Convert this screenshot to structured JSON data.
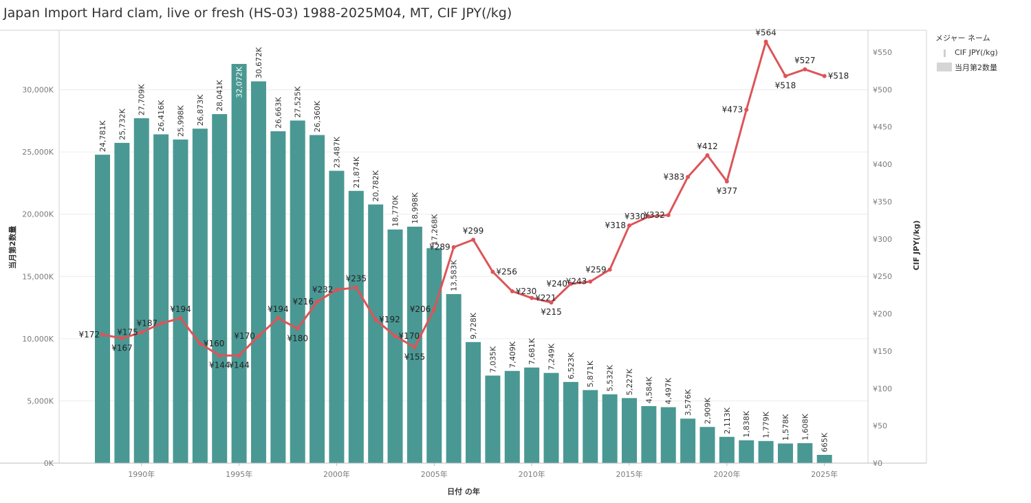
{
  "title": "Japan Import Hard clam, live or fresh (HS-03) 1988-2025M04, MT, CIF JPY(/kg)",
  "legend": {
    "title": "メジャー ネーム",
    "items": [
      {
        "label": "CIF JPY(/kg)",
        "kind": "line"
      },
      {
        "label": "当月第2数量",
        "kind": "bar"
      }
    ]
  },
  "colors": {
    "bar": "#4a9893",
    "line": "#dd5458",
    "grid": "#ececec",
    "axis": "#d0d0d0",
    "tick_text": "#7a7a7a",
    "label_text": "#333333"
  },
  "chart_data": {
    "type": "bar",
    "title": "Japan Import Hard clam, live or fresh (HS-03) 1988-2025M04, MT, CIF JPY(/kg)",
    "xlabel": "日付 の年",
    "ylabel": "当月第2数量",
    "y2label": "CIF JPY(/kg)",
    "ylim": [
      0,
      35000
    ],
    "y2lim": [
      0,
      583
    ],
    "x": [
      1988,
      1989,
      1990,
      1991,
      1992,
      1993,
      1994,
      1995,
      1996,
      1997,
      1998,
      1999,
      2000,
      2001,
      2002,
      2003,
      2004,
      2005,
      2006,
      2007,
      2008,
      2009,
      2010,
      2011,
      2012,
      2013,
      2014,
      2015,
      2016,
      2017,
      2018,
      2019,
      2020,
      2021,
      2022,
      2023,
      2024,
      2025
    ],
    "x_ticks": [
      1990,
      1995,
      2000,
      2005,
      2010,
      2015,
      2020,
      2025
    ],
    "x_tick_labels": [
      "1990年",
      "1995年",
      "2000年",
      "2005年",
      "2010年",
      "2015年",
      "2020年",
      "2025年"
    ],
    "y_ticks": [
      0,
      5000,
      10000,
      15000,
      20000,
      25000,
      30000
    ],
    "y_tick_labels": [
      "0K",
      "5,000K",
      "10,000K",
      "15,000K",
      "20,000K",
      "25,000K",
      "30,000K"
    ],
    "y2_ticks": [
      0,
      50,
      100,
      150,
      200,
      250,
      300,
      350,
      400,
      450,
      500,
      550
    ],
    "y2_tick_labels": [
      "¥0",
      "¥50",
      "¥100",
      "¥150",
      "¥200",
      "¥250",
      "¥300",
      "¥350",
      "¥400",
      "¥450",
      "¥500",
      "¥550"
    ],
    "series": [
      {
        "name": "当月第2数量",
        "type": "bar",
        "axis": "left",
        "values": [
          24781,
          25732,
          27709,
          26416,
          25998,
          26873,
          28041,
          32072,
          30672,
          26663,
          27525,
          26360,
          23487,
          21874,
          20782,
          18770,
          18998,
          17268,
          13583,
          9728,
          7035,
          7409,
          7681,
          7249,
          6523,
          5871,
          5532,
          5227,
          4584,
          4497,
          3576,
          2909,
          2113,
          1838,
          1779,
          1578,
          1608,
          665
        ],
        "labels": [
          "24,781K",
          "25,732K",
          "27,709K",
          "26,416K",
          "25,998K",
          "26,873K",
          "28,041K",
          "32,072K",
          "30,672K",
          "26,663K",
          "27,525K",
          "26,360K",
          "23,487K",
          "21,874K",
          "20,782K",
          "18,770K",
          "18,998K",
          "17,268K",
          "13,583K",
          "9,728K",
          "7,035K",
          "7,409K",
          "7,681K",
          "7,249K",
          "6,523K",
          "5,871K",
          "5,532K",
          "5,227K",
          "4,584K",
          "4,497K",
          "3,576K",
          "2,909K",
          "2,113K",
          "1,838K",
          "1,779K",
          "1,578K",
          "1,608K",
          "665K"
        ]
      },
      {
        "name": "CIF JPY(/kg)",
        "type": "line",
        "axis": "right",
        "values": [
          172,
          167,
          175,
          187,
          194,
          160,
          144,
          144,
          170,
          194,
          180,
          216,
          232,
          235,
          192,
          170,
          155,
          206,
          289,
          299,
          256,
          230,
          221,
          215,
          240,
          243,
          259,
          318,
          330,
          332,
          383,
          412,
          377,
          473,
          564,
          518,
          527,
          518
        ],
        "labels": [
          "¥172",
          "¥167",
          "¥175",
          "¥187",
          "¥194",
          "¥160",
          "¥144",
          "¥144",
          "¥170",
          "¥194",
          "¥180",
          "¥216",
          "¥232",
          "¥235",
          "¥192",
          "¥170",
          "¥155",
          "¥206",
          "¥289",
          "¥299",
          "¥256",
          "¥230",
          "¥221",
          "¥215",
          "¥240",
          "¥243",
          "¥259",
          "¥318",
          "¥330",
          "¥332",
          "¥383",
          "¥412",
          "¥377",
          "¥473",
          "¥564",
          "¥518",
          "¥527",
          "¥518"
        ]
      }
    ],
    "grid": true,
    "legend_position": "right"
  }
}
